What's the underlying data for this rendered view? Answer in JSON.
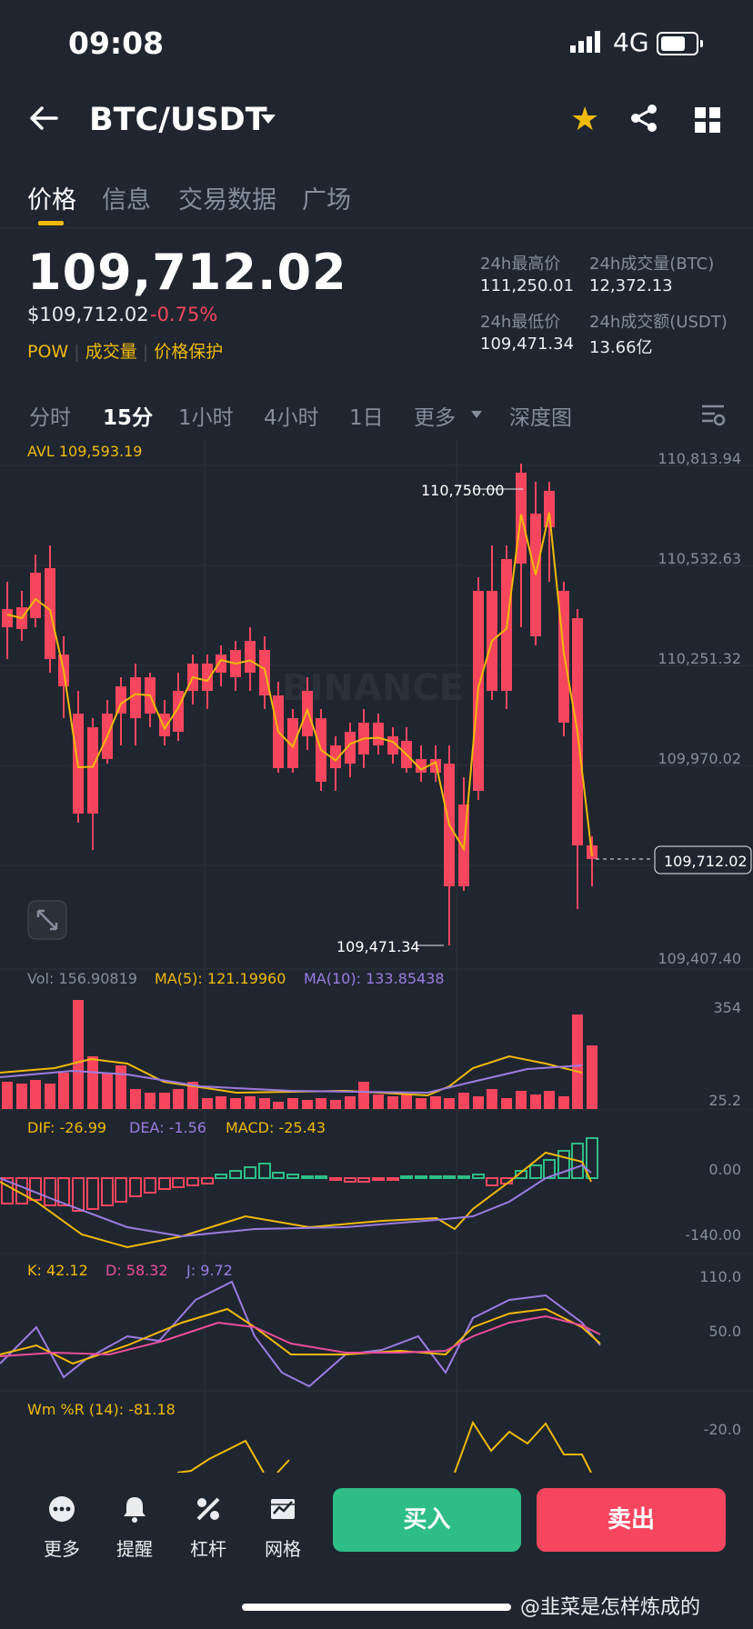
{
  "status_bar": {
    "time": "09:08",
    "network": "4G"
  },
  "header": {
    "pair": "BTC/USDT"
  },
  "tabs": [
    {
      "label": "价格"
    },
    {
      "label": "信息"
    },
    {
      "label": "交易数据"
    },
    {
      "label": "广场"
    }
  ],
  "ticker": {
    "last_price": "109,712.02",
    "usd_price": "$109,712.02",
    "change_pct": "-0.75%",
    "tags": [
      "POW",
      "成交量",
      "价格保护"
    ],
    "high_label": "24h最高价",
    "high_value": "111,250.01",
    "vol_btc_label": "24h成交量(BTC)",
    "vol_btc_value": "12,372.13",
    "low_label": "24h最低价",
    "low_value": "109,471.34",
    "vol_usdt_label": "24h成交额(USDT)",
    "vol_usdt_value": "13.66亿"
  },
  "intervals": [
    {
      "label": "分时"
    },
    {
      "label": "15分"
    },
    {
      "label": "1小时"
    },
    {
      "label": "4小时"
    },
    {
      "label": "1日"
    },
    {
      "label": "更多"
    },
    {
      "label": "深度图"
    }
  ],
  "chart": {
    "avl_label": "AVL 109,593.19",
    "price_axis": [
      "110,813.94",
      "110,532.63",
      "110,251.32",
      "109,970.02",
      "109,407.40"
    ],
    "current_price_tag": "109,712.02",
    "high_marker": "110,750.00",
    "low_marker": "109,471.34",
    "watermark_text": "BINANCE",
    "volume": {
      "label": "Vol: 156.90819",
      "ma5": "MA(5): 121.19960",
      "ma10": "MA(10): 133.85438",
      "axis_top": "354",
      "axis_bottom": "25.2"
    },
    "macd": {
      "dif": "DIF: -26.99",
      "dea": "DEA: -1.56",
      "macd": "MACD: -25.43",
      "axis_top": "0.00",
      "axis_bottom": "-140.00"
    },
    "kdj": {
      "k": "K: 42.12",
      "d": "D: 58.32",
      "j": "J: 9.72",
      "axis_top": "110.0",
      "axis_mid": "50.0"
    },
    "wr": {
      "label": "Wm %R (14): -81.18",
      "axis_top": "-20.0"
    },
    "colors": {
      "up": "#2ebd85",
      "down": "#f6465d",
      "ma_yellow": "#f0b90b",
      "ma_purple": "#9c7be0",
      "pink": "#e94d9b"
    }
  },
  "bottom_bar": {
    "items": [
      {
        "label": "更多"
      },
      {
        "label": "提醒"
      },
      {
        "label": "杠杆"
      },
      {
        "label": "网格"
      }
    ],
    "buy_label": "买入",
    "sell_label": "卖出"
  },
  "overlay": {
    "watermark": "@韭菜是怎样炼成的"
  }
}
